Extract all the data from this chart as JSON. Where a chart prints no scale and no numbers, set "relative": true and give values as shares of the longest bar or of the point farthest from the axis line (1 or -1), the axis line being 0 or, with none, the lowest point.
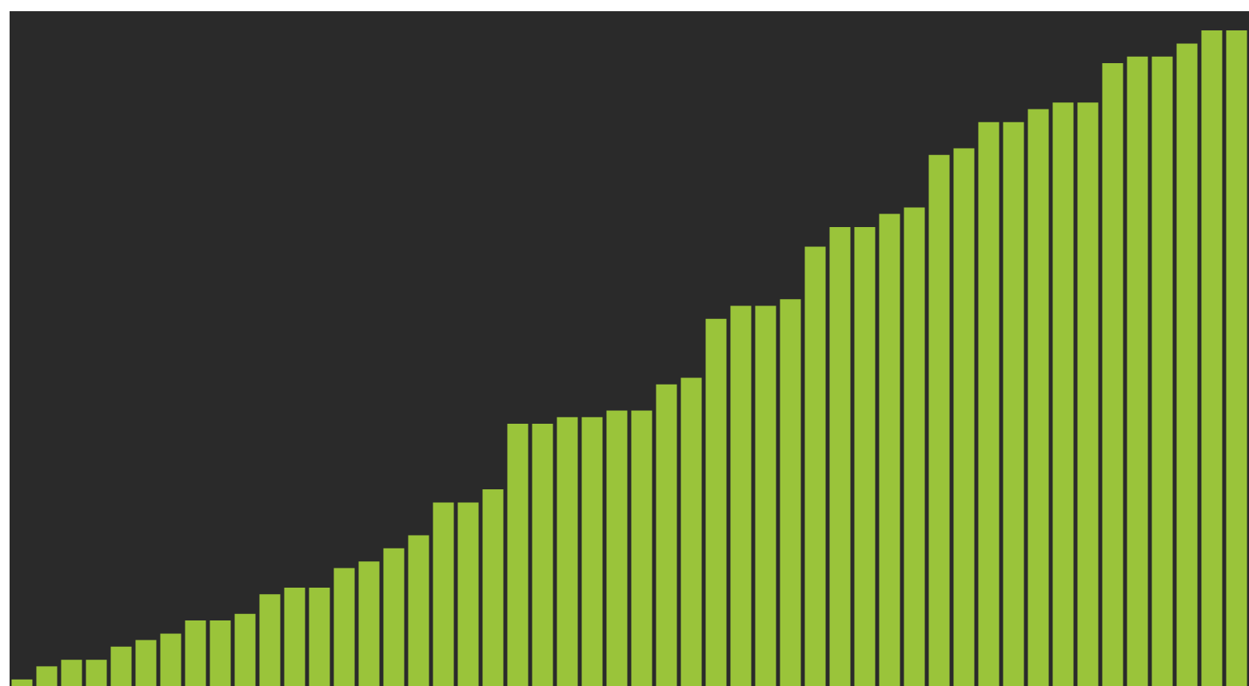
{
  "chart_data": {
    "type": "bar",
    "relative": true,
    "color": "#9ac43a",
    "categories": [
      null,
      null,
      null,
      null,
      null,
      null,
      null,
      null,
      null,
      null,
      null,
      null,
      null,
      null,
      null,
      null,
      null,
      null,
      null,
      null,
      null,
      null,
      null,
      null,
      null,
      null,
      null,
      null,
      null,
      null,
      null,
      null,
      null,
      null,
      null,
      null,
      null,
      null,
      null,
      null,
      null,
      null,
      null,
      null,
      null,
      null,
      null,
      null,
      null,
      null
    ],
    "values": [
      0.01,
      0.03,
      0.04,
      0.04,
      0.06,
      0.07,
      0.08,
      0.1,
      0.1,
      0.11,
      0.14,
      0.15,
      0.15,
      0.18,
      0.19,
      0.21,
      0.23,
      0.28,
      0.28,
      0.3,
      0.4,
      0.4,
      0.41,
      0.41,
      0.42,
      0.42,
      0.46,
      0.47,
      0.56,
      0.58,
      0.58,
      0.59,
      0.67,
      0.7,
      0.7,
      0.72,
      0.73,
      0.81,
      0.82,
      0.86,
      0.86,
      0.88,
      0.89,
      0.89,
      0.95,
      0.96,
      0.96,
      0.98,
      1,
      1
    ],
    "legend": false
  }
}
